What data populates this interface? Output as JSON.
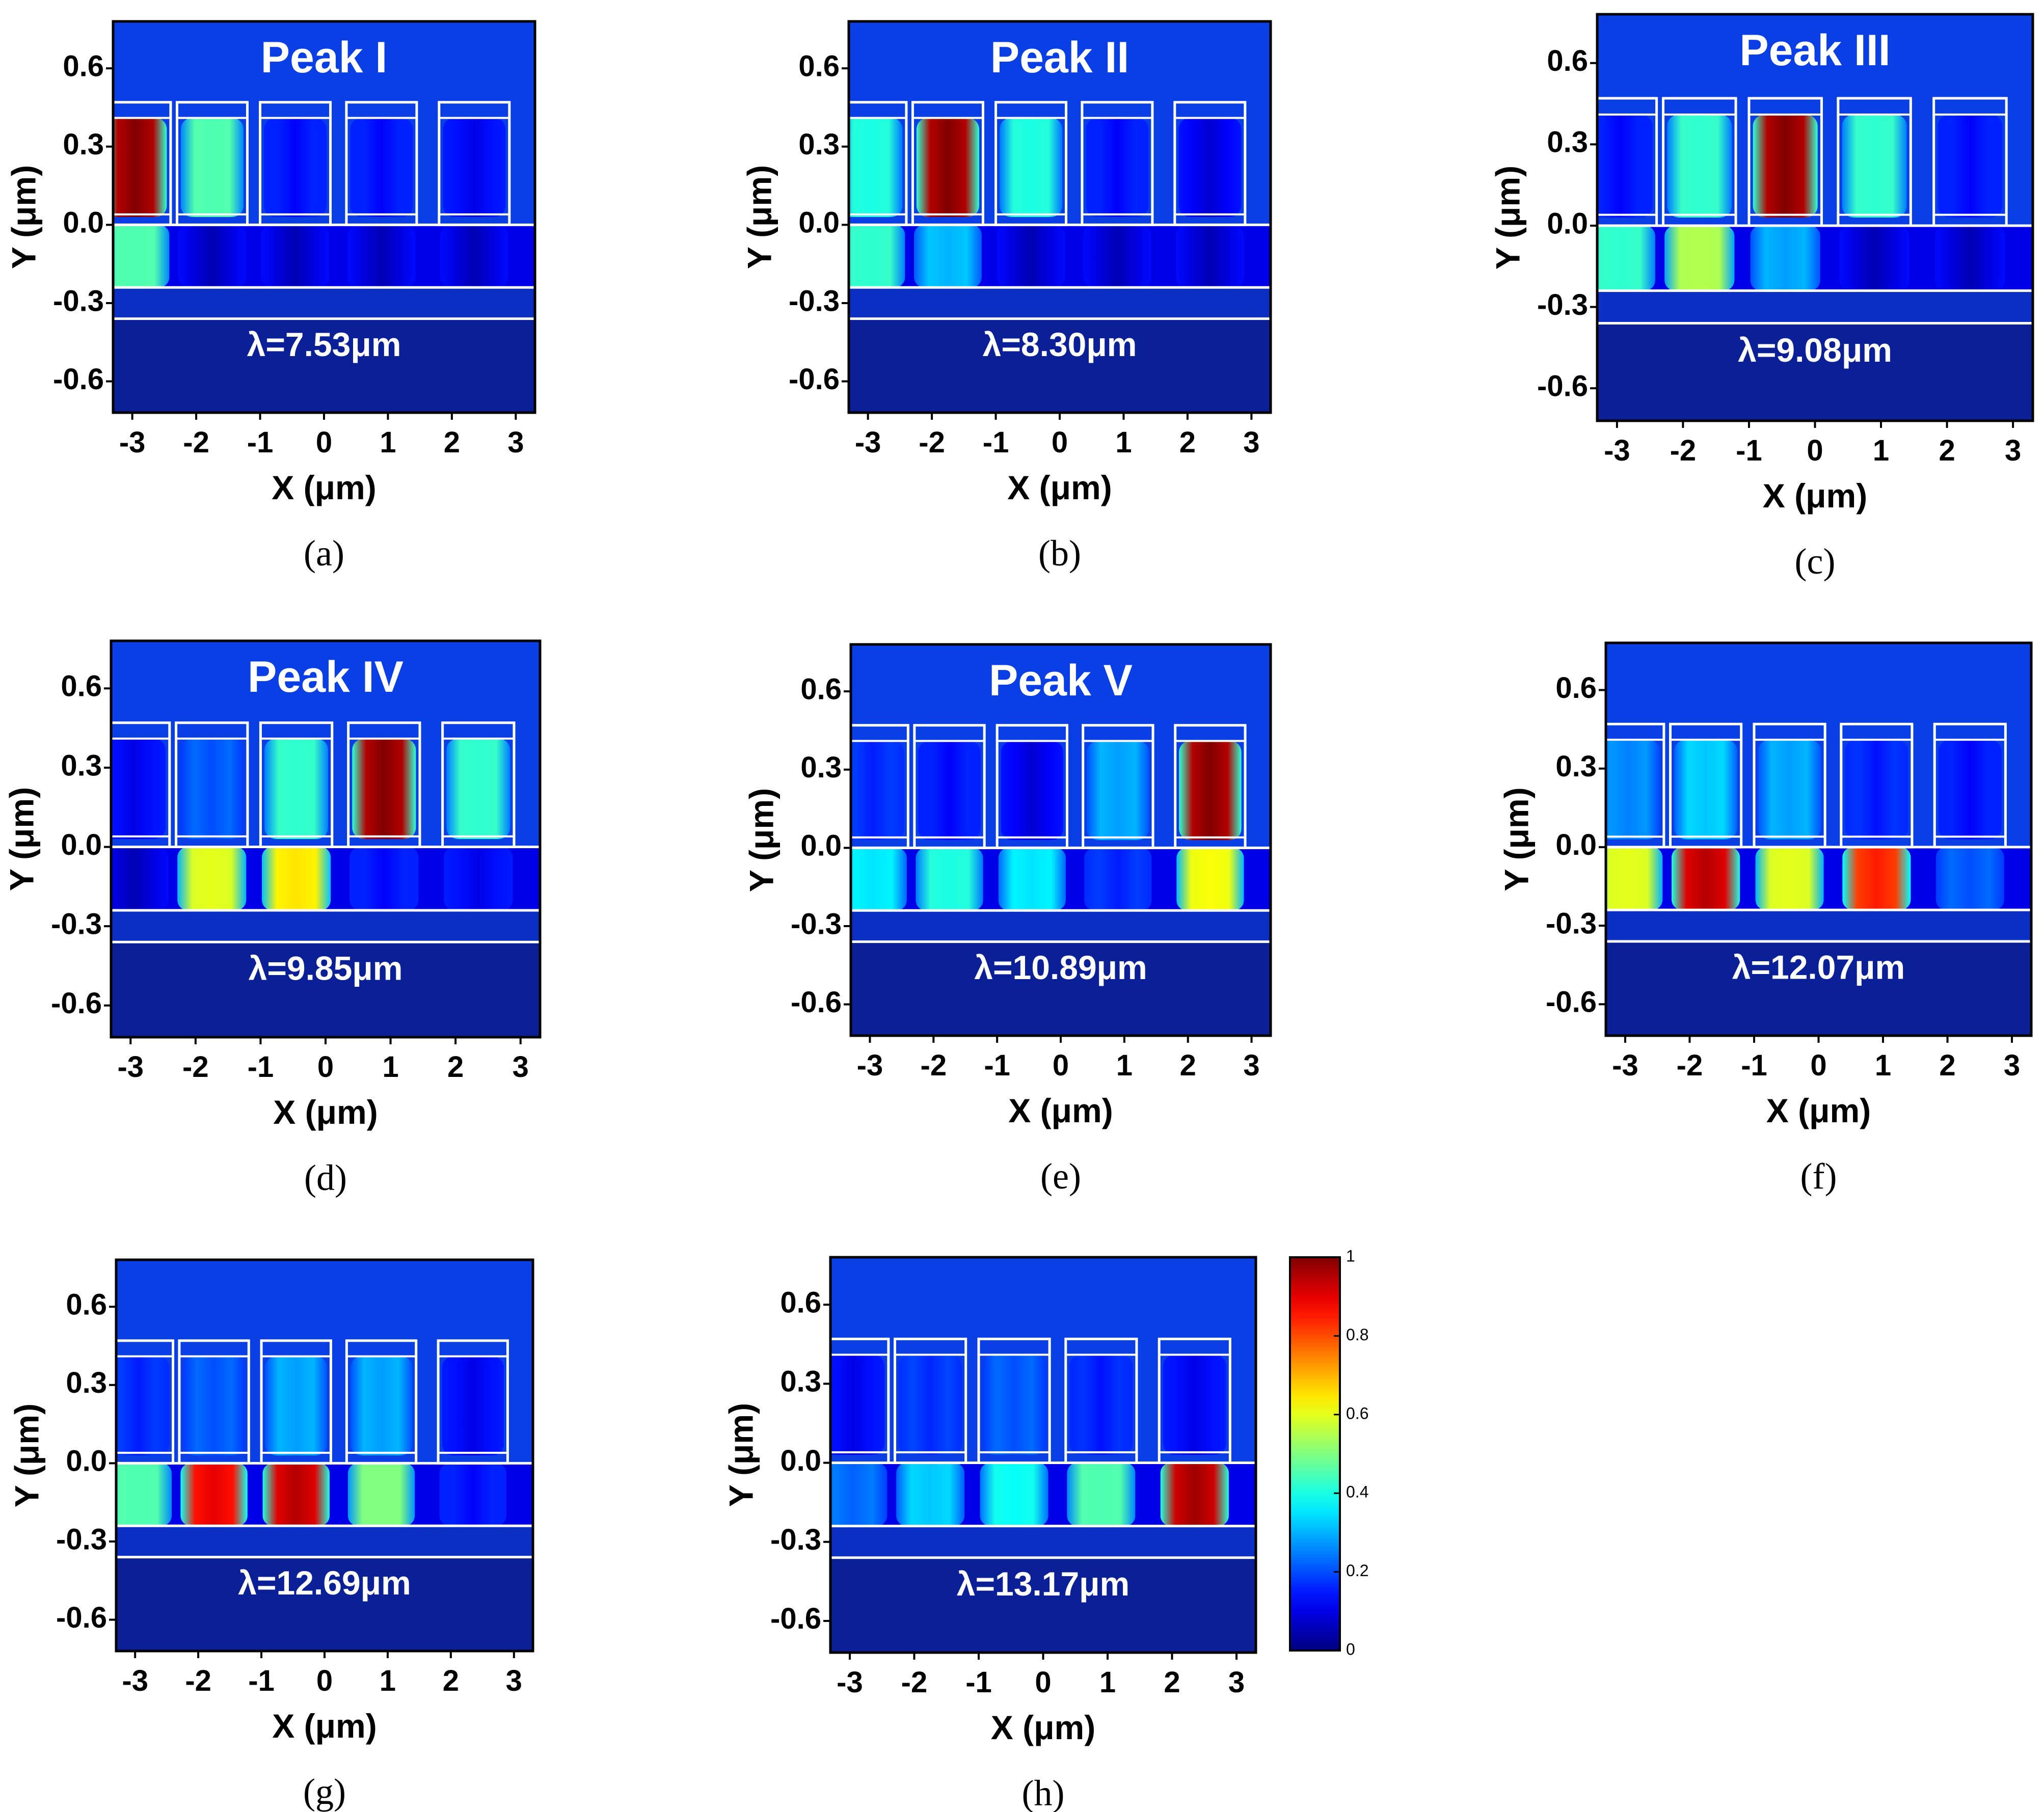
{
  "chart_data": {
    "type": "heatmap",
    "description_units": "normalized field intensity |E|, 0 to 1",
    "x_axis": {
      "label": "X (μm)",
      "ticks": [
        "-3",
        "-2",
        "-1",
        "0",
        "1",
        "2",
        "3"
      ],
      "range": [
        -3.3,
        3.3
      ]
    },
    "y_axis": {
      "label": "Y (μm)",
      "ticks": [
        "0.6",
        "0.3",
        "0.0",
        "-0.3",
        "-0.6"
      ],
      "range": [
        -0.72,
        0.78
      ]
    },
    "resonator_centers_um": [
      -2.95,
      -1.75,
      -0.45,
      0.9,
      2.35
    ],
    "resonator_region_y_um": [
      0.0,
      0.47
    ],
    "gap_layer_y_um": [
      -0.24,
      0.0
    ],
    "substrate_top_y_um": -0.36,
    "colorbar": {
      "min": 0,
      "max": 1,
      "ticks": [
        "1",
        "0.8",
        "0.6",
        "0.4",
        "0.2",
        "0"
      ]
    },
    "panels": [
      {
        "id": "a",
        "caption": "(a)",
        "title": "Peak I",
        "wavelength": "λ=7.53μm",
        "resonator_intensity": [
          1.0,
          0.45,
          0.12,
          0.12,
          0.1
        ],
        "gap_intensity": [
          0.45,
          0.05,
          0.05,
          0.05,
          0.05
        ]
      },
      {
        "id": "b",
        "caption": "(b)",
        "title": "Peak II",
        "wavelength": "λ=8.30μm",
        "resonator_intensity": [
          0.4,
          1.0,
          0.4,
          0.12,
          0.08
        ],
        "gap_intensity": [
          0.42,
          0.3,
          0.05,
          0.05,
          0.05
        ]
      },
      {
        "id": "c",
        "caption": "(c)",
        "title": "Peak III",
        "wavelength": "λ=9.08μm",
        "resonator_intensity": [
          0.12,
          0.42,
          1.0,
          0.42,
          0.12
        ],
        "gap_intensity": [
          0.42,
          0.55,
          0.28,
          0.05,
          0.05
        ]
      },
      {
        "id": "d",
        "caption": "(d)",
        "title": "Peak IV",
        "wavelength": "λ=9.85μm",
        "resonator_intensity": [
          0.1,
          0.2,
          0.42,
          1.0,
          0.42
        ],
        "gap_intensity": [
          0.05,
          0.6,
          0.65,
          0.12,
          0.1
        ]
      },
      {
        "id": "e",
        "caption": "(e)",
        "title": "Peak V",
        "wavelength": "λ=10.89μm",
        "resonator_intensity": [
          0.15,
          0.12,
          0.08,
          0.28,
          1.0
        ],
        "gap_intensity": [
          0.35,
          0.4,
          0.35,
          0.15,
          0.62
        ]
      },
      {
        "id": "f",
        "caption": "(f)",
        "title": "",
        "wavelength": "λ=12.07μm",
        "resonator_intensity": [
          0.25,
          0.32,
          0.28,
          0.14,
          0.12
        ],
        "gap_intensity": [
          0.6,
          0.95,
          0.6,
          0.85,
          0.2
        ]
      },
      {
        "id": "g",
        "caption": "(g)",
        "title": "",
        "wavelength": "λ=12.69μm",
        "resonator_intensity": [
          0.15,
          0.2,
          0.28,
          0.28,
          0.1
        ],
        "gap_intensity": [
          0.45,
          0.9,
          0.95,
          0.5,
          0.12
        ]
      },
      {
        "id": "h",
        "caption": "(h)",
        "title": "",
        "wavelength": "λ=13.17μm",
        "resonator_intensity": [
          0.1,
          0.16,
          0.2,
          0.14,
          0.1
        ],
        "gap_intensity": [
          0.22,
          0.32,
          0.38,
          0.45,
          0.97
        ]
      }
    ]
  }
}
